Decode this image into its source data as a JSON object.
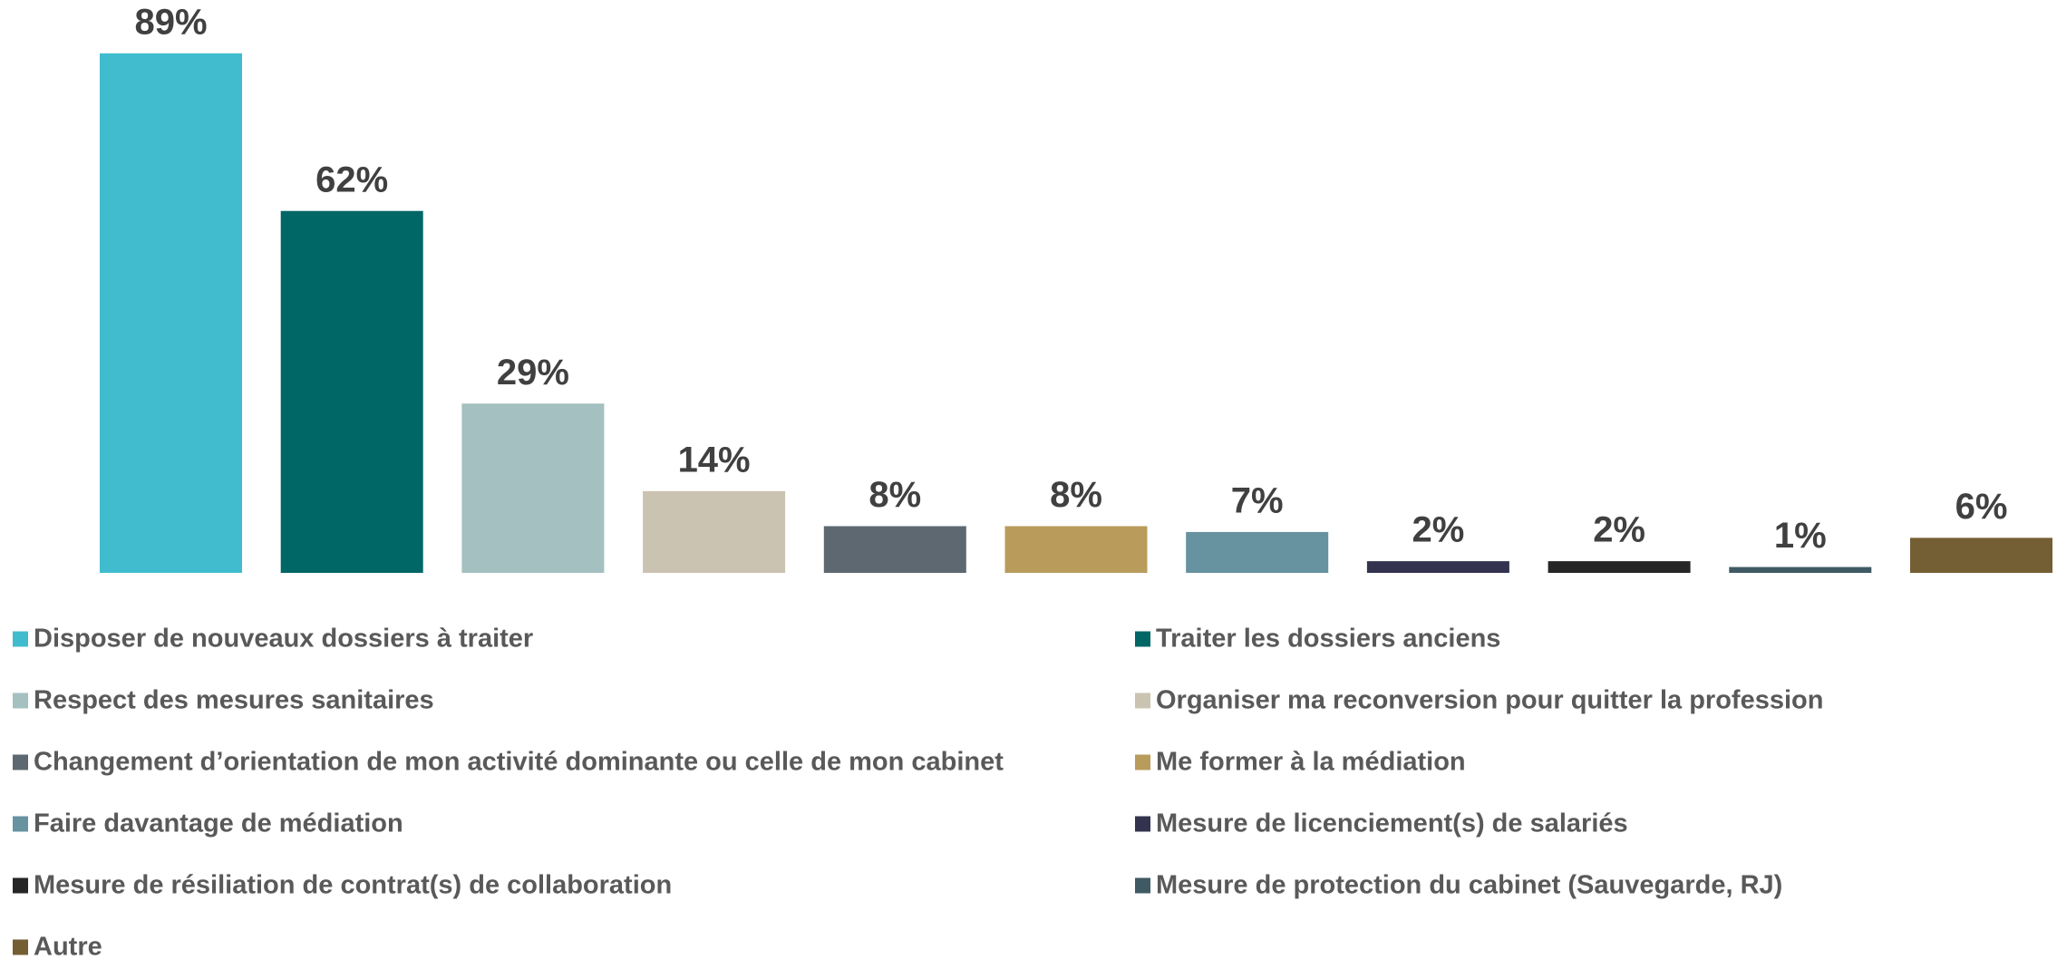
{
  "chart_data": {
    "type": "bar",
    "series": [
      {
        "name": "Disposer de nouveaux dossiers à traiter",
        "color": "#40bcce",
        "values": [
          89
        ],
        "value_labels": [
          "89%"
        ]
      },
      {
        "name": "Traiter les dossiers anciens",
        "color": "#006666",
        "values": [
          62
        ],
        "value_labels": [
          "62%"
        ]
      },
      {
        "name": "Respect des mesures sanitaires",
        "color": "#a4c0c0",
        "values": [
          29
        ],
        "value_labels": [
          "29%"
        ]
      },
      {
        "name": "Organiser ma reconversion pour quitter la profession",
        "color": "#cbc3b1",
        "values": [
          14
        ],
        "value_labels": [
          "14%"
        ]
      },
      {
        "name": "Changement d’orientation de mon activité dominante ou celle de mon cabinet",
        "color": "#5d6870",
        "values": [
          8
        ],
        "value_labels": [
          "8%"
        ]
      },
      {
        "name": "Me former à la médiation",
        "color": "#b99b5b",
        "values": [
          8
        ],
        "value_labels": [
          "8%"
        ]
      },
      {
        "name": "Faire davantage de médiation",
        "color": "#6792a0",
        "values": [
          7
        ],
        "value_labels": [
          "7%"
        ]
      },
      {
        "name": "Mesure de licenciement(s) de salariés",
        "color": "#333350",
        "values": [
          2
        ],
        "value_labels": [
          "2%"
        ]
      },
      {
        "name": "Mesure de résiliation de contrat(s) de collaboration",
        "color": "#262626",
        "values": [
          2
        ],
        "value_labels": [
          "2%"
        ]
      },
      {
        "name": "Mesure de protection du cabinet (Sauvegarde, RJ)",
        "color": "#405a64",
        "values": [
          1
        ],
        "value_labels": [
          "1%"
        ]
      },
      {
        "name": "Autre",
        "color": "#745e33",
        "values": [
          6
        ],
        "value_labels": [
          "6%"
        ]
      }
    ]
  }
}
